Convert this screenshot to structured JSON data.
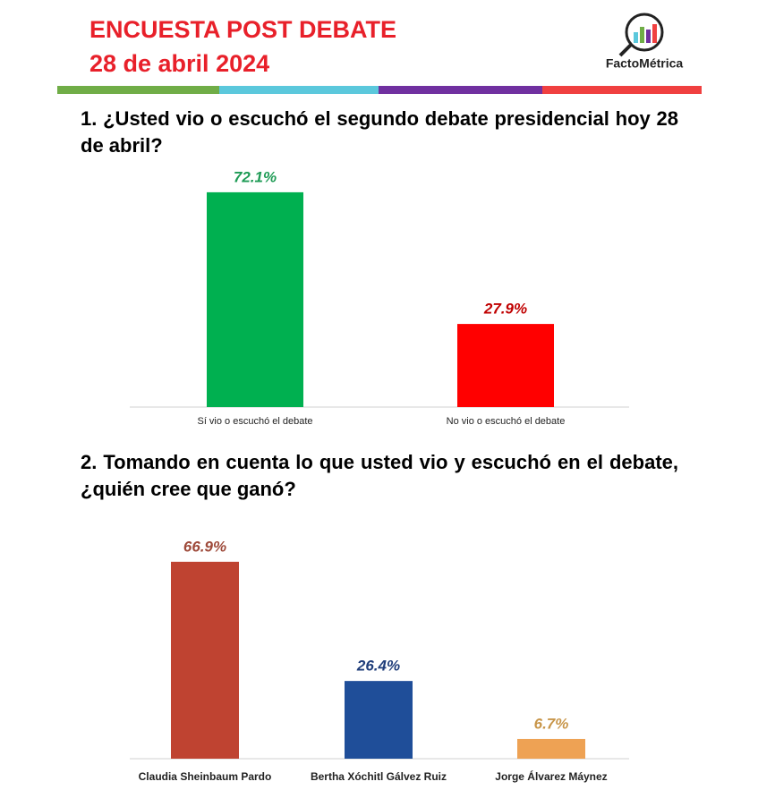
{
  "header": {
    "title": "ENCUESTA POST DEBATE",
    "date": "28 de abril 2024",
    "logo": "FactoMétrica"
  },
  "chart_data": [
    {
      "type": "bar",
      "title": "1. ¿Usted vio o escuchó el segundo debate presidencial hoy 28 de abril?",
      "categories": [
        "Sí vio o escuchó el debate",
        "No vio o escuchó el debate"
      ],
      "values": [
        72.1,
        27.9
      ],
      "value_labels": [
        "72.1%",
        "27.9%"
      ],
      "colors": [
        "#00b050",
        "#ff0000"
      ],
      "label_colors": [
        "#1e9b55",
        "#c00000"
      ]
    },
    {
      "type": "bar",
      "title": "2. Tomando en cuenta lo que usted vio y escuchó en el debate, ¿quién cree que ganó?",
      "categories": [
        "Claudia Sheinbaum Pardo",
        "Bertha Xóchitl Gálvez Ruiz",
        "Jorge Álvarez Máynez"
      ],
      "values": [
        66.9,
        26.4,
        6.7
      ],
      "value_labels": [
        "66.9%",
        "26.4%",
        "6.7%"
      ],
      "colors": [
        "#bf4331",
        "#1f4e99",
        "#eea254"
      ],
      "label_colors": [
        "#9e4a3a",
        "#1f3d7a",
        "#c8964a"
      ]
    }
  ]
}
